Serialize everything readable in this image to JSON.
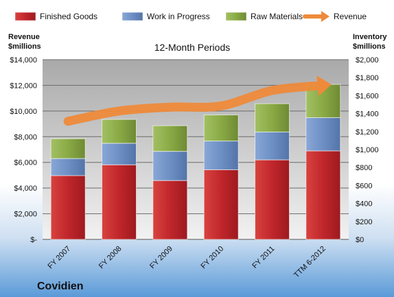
{
  "chart_data": {
    "type": "bar",
    "subtitle": "12-Month Periods",
    "company": "Covidien",
    "left_axis_label": [
      "Revenue",
      "$millions"
    ],
    "right_axis_label": [
      "Inventory",
      "$millions"
    ],
    "categories": [
      "FY 2007",
      "FY 2008",
      "FY 2009",
      "FY 2010",
      "FY 2011",
      "TTM 6-2012"
    ],
    "left_axis": {
      "min": 0,
      "max": 14000,
      "step": 2000,
      "tick_labels": [
        "$-",
        "$2,000",
        "$4,000",
        "$6,000",
        "$8,000",
        "$10,000",
        "$12,000",
        "$14,000"
      ]
    },
    "right_axis": {
      "min": 0,
      "max": 2000,
      "step": 200,
      "tick_labels": [
        "$0",
        "$200",
        "$400",
        "$600",
        "$800",
        "$1,000",
        "$1,200",
        "$1,400",
        "$1,600",
        "$1,800",
        "$2,000"
      ]
    },
    "series": [
      {
        "name": "Finished Goods",
        "kind": "stacked-bar",
        "axis": "right",
        "color": "#c0262b",
        "values": [
          710,
          830,
          655,
          775,
          885,
          985
        ]
      },
      {
        "name": "Work in Progress",
        "kind": "stacked-bar",
        "axis": "right",
        "color": "#6d8fc4",
        "values": [
          190,
          240,
          325,
          320,
          310,
          370
        ]
      },
      {
        "name": "Raw Materials",
        "kind": "stacked-bar",
        "axis": "right",
        "color": "#8aaa45",
        "values": [
          220,
          265,
          285,
          290,
          315,
          370
        ]
      },
      {
        "name": "Revenue",
        "kind": "line",
        "axis": "left",
        "color": "#ee8a3a",
        "values": [
          9200,
          10000,
          10300,
          10400,
          11600,
          12000
        ]
      }
    ],
    "legend_position": "top",
    "grid": true
  }
}
